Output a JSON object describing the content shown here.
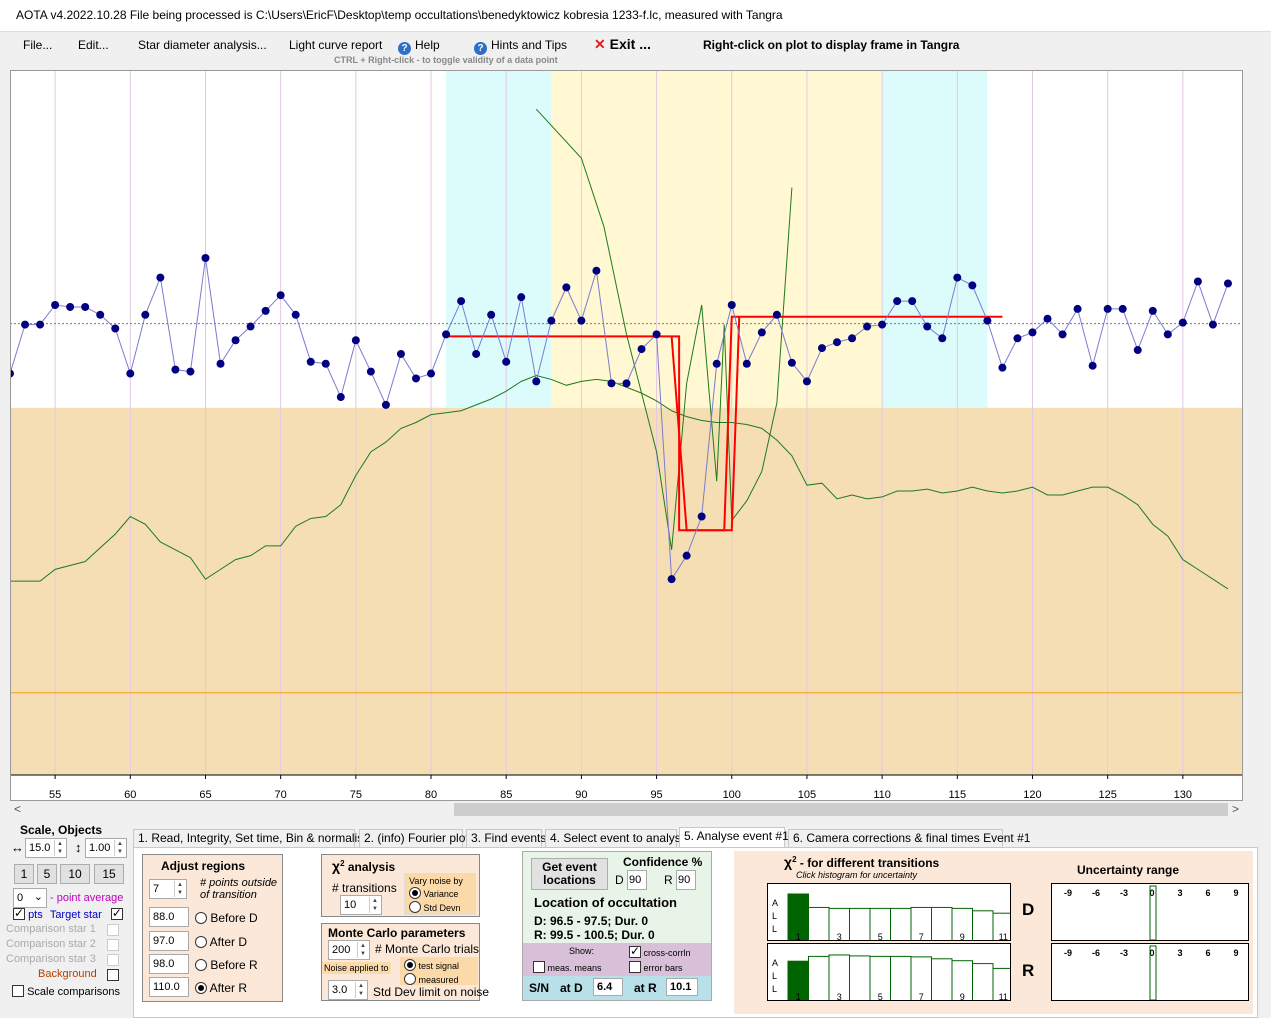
{
  "window": {
    "title": "AOTA v4.2022.10.28    File being processed is C:\\Users\\EricF\\Desktop\\temp occultations\\benedyktowicz kobresia 1233-f.lc, measured with Tangra"
  },
  "menu": {
    "file": "File...",
    "edit": "Edit...",
    "star_diameter": "Star diameter analysis...",
    "light_curve_report": "Light curve report",
    "help": "Help",
    "hints": "Hints and Tips",
    "exit": "Exit ...",
    "right_click_hint": "Right-click on plot to display frame in Tangra",
    "ctrl_hint": "CTRL + Right-click   -  to toggle validity of a data point"
  },
  "colors": {
    "target_line": "#7b7bd0",
    "target_dot": "#000080",
    "model": "#ff0000",
    "comparison": "#1e7b1e",
    "lower_band": "#f5deb3",
    "region_cyan": "#dcfcfc",
    "region_yellow": "#fff8d2",
    "baseline": "#e6a020"
  },
  "chart_data": {
    "type": "line",
    "x_ticks": [
      55,
      60,
      65,
      70,
      75,
      80,
      85,
      90,
      95,
      100,
      105,
      110,
      115,
      120,
      125,
      130
    ],
    "xlim": [
      52,
      134
    ],
    "target_series": {
      "x": [
        52,
        53,
        54,
        55,
        56,
        57,
        58,
        59,
        60,
        61,
        62,
        63,
        64,
        65,
        66,
        67,
        68,
        69,
        70,
        71,
        72,
        73,
        74,
        75,
        76,
        77,
        78,
        79,
        80,
        81,
        82,
        83,
        84,
        85,
        86,
        87,
        88,
        89,
        90,
        91,
        92,
        93,
        94,
        95,
        96,
        97,
        98,
        99,
        100,
        101,
        102,
        103,
        104,
        105,
        106,
        107,
        108,
        109,
        110,
        111,
        112,
        113,
        114,
        115,
        116,
        117,
        118,
        119,
        120,
        121,
        122,
        123,
        124,
        125,
        126,
        127,
        128,
        129,
        130,
        131,
        132,
        133
      ],
      "y": [
        0.41,
        0.46,
        0.46,
        0.48,
        0.478,
        0.478,
        0.47,
        0.456,
        0.41,
        0.47,
        0.508,
        0.414,
        0.412,
        0.528,
        0.42,
        0.444,
        0.458,
        0.474,
        0.49,
        0.47,
        0.422,
        0.42,
        0.386,
        0.444,
        0.412,
        0.378,
        0.43,
        0.405,
        0.41,
        0.45,
        0.484,
        0.43,
        0.47,
        0.422,
        0.488,
        0.402,
        0.464,
        0.498,
        0.464,
        0.515,
        0.4,
        0.4,
        0.435,
        0.45,
        0.2,
        0.224,
        0.264,
        0.42,
        0.48,
        0.42,
        0.452,
        0.47,
        0.421,
        0.402,
        0.436,
        0.442,
        0.446,
        0.458,
        0.46,
        0.484,
        0.484,
        0.458,
        0.446,
        0.508,
        0.5,
        0.464,
        0.416,
        0.446,
        0.452,
        0.466,
        0.45,
        0.476,
        0.418,
        0.476,
        0.476,
        0.434,
        0.474,
        0.45,
        0.462,
        0.504,
        0.46,
        0.502
      ]
    },
    "model": {
      "level_before": 0.448,
      "level_after": 0.468,
      "level_bottom": 0.25,
      "D": 97.0,
      "R": 100.0
    },
    "comparison_series": {
      "x": [
        52,
        54,
        55,
        57,
        59,
        60,
        61,
        62,
        63,
        64,
        65,
        66,
        67,
        68,
        69,
        70,
        71,
        72,
        73,
        74,
        75,
        76,
        77,
        78,
        79,
        80,
        81,
        82,
        83,
        84,
        85,
        86,
        87,
        88,
        89,
        90,
        91,
        92,
        93,
        94,
        95,
        96,
        97,
        98,
        99,
        100,
        101,
        102,
        103,
        104,
        105,
        106,
        107,
        108,
        109,
        110,
        111,
        112,
        113,
        114,
        115,
        116,
        117,
        118,
        119,
        120,
        121,
        122,
        123,
        124,
        125,
        126,
        127,
        128,
        129,
        130,
        131,
        133
      ],
      "y": [
        0.198,
        0.198,
        0.21,
        0.218,
        0.246,
        0.264,
        0.256,
        0.238,
        0.23,
        0.222,
        0.2,
        0.21,
        0.22,
        0.224,
        0.234,
        0.234,
        0.254,
        0.262,
        0.264,
        0.276,
        0.306,
        0.33,
        0.34,
        0.354,
        0.36,
        0.368,
        0.37,
        0.372,
        0.378,
        0.384,
        0.392,
        0.402,
        0.408,
        0.404,
        0.398,
        0.402,
        0.404,
        0.402,
        0.396,
        0.39,
        0.382,
        0.372,
        0.366,
        0.362,
        0.36,
        0.36,
        0.358,
        0.354,
        0.342,
        0.326,
        0.296,
        0.298,
        0.282,
        0.286,
        0.282,
        0.284,
        0.29,
        0.29,
        0.292,
        0.288,
        0.29,
        0.294,
        0.29,
        0.288,
        0.29,
        0.294,
        0.286,
        0.286,
        0.29,
        0.294,
        0.294,
        0.286,
        0.276,
        0.256,
        0.244,
        0.22,
        0.21,
        0.19
      ]
    },
    "green_transition_curve": {
      "x": [
        87,
        90,
        91.5,
        93,
        95,
        96,
        97,
        98,
        99,
        99.5,
        100,
        101,
        102,
        103,
        104
      ],
      "y": [
        0.68,
        0.63,
        0.56,
        0.45,
        0.33,
        0.23,
        0.4,
        0.48,
        0.3,
        0.46,
        0.26,
        0.28,
        0.31,
        0.38,
        0.6
      ]
    },
    "regions": [
      {
        "from": 81,
        "to": 88,
        "color": "cyan"
      },
      {
        "from": 88,
        "to": 110,
        "color": "yellow"
      },
      {
        "from": 110,
        "to": 117,
        "color": "cyan"
      }
    ],
    "mean_line_y": 0.461,
    "lower_band_top": 0.375,
    "baseline_y": 0.084,
    "ylim": [
      0,
      0.72
    ]
  },
  "left_panel": {
    "scale_objects": "Scale,  Objects",
    "h_scale": "15.0",
    "v_scale": "1.00",
    "scale_buttons": [
      "1",
      "5",
      "10",
      "15"
    ],
    "point_average_value": "0",
    "point_average_label": "- point average",
    "pts_label": "pts",
    "target_star": "Target star",
    "comparison_1": "Comparison star 1",
    "comparison_2": "Comparison star 2",
    "comparison_3": "Comparison star 3",
    "background": "Background",
    "scale_comparisons": "Scale comparisons"
  },
  "tabs": [
    "1.  Read, Integrity, Set time, Bin & normalise",
    "2. (info)  Fourier plot",
    "3. Find events",
    "4. Select event to analyse",
    "5. Analyse event #1",
    "6. Camera corrections & final times Event #1"
  ],
  "adjust_regions": {
    "title": "Adjust regions",
    "points_outside": "7",
    "points_outside_label_1": "# points outside",
    "points_outside_label_2": "of transition",
    "before_d": "88.0",
    "after_d": "97.0",
    "before_r": "98.0",
    "after_r": "110.0",
    "before_d_label": "Before D",
    "after_d_label": "After D",
    "before_r_label": "Before R",
    "after_r_label": "After R"
  },
  "chi2": {
    "title": "analysis",
    "transitions_label": "# transitions",
    "transitions_value": "10",
    "vary_noise": "Vary noise by",
    "variance": "Variance",
    "std_devn": "Std Devn"
  },
  "monte_carlo": {
    "title": "Monte Carlo parameters",
    "trials_value": "200",
    "trials_label": "# Monte Carlo trials",
    "noise_applied": "Noise applied to",
    "test_signal": "test signal",
    "measured": "measured",
    "std_dev_value": "3.0",
    "std_dev_label": "Std Dev limit on noise"
  },
  "event": {
    "get_locations": "Get event locations",
    "confidence": "Confidence %",
    "d_label": "D",
    "d_value": "90",
    "r_label": "R",
    "r_value": "90",
    "location_title": "Location of occultation",
    "d_result": "D: 96.5 - 97.5; Dur. 0",
    "r_result": "R: 99.5 - 100.5; Dur. 0",
    "show": "Show:",
    "cross_corrln": "cross-corrln",
    "meas_means": "meas. means",
    "error_bars": "error bars",
    "sn": "S/N",
    "at_d": "at D",
    "at_d_value": "6.4",
    "at_r": "at R",
    "at_r_value": "10.1"
  },
  "chi2_hist": {
    "title": "- for different transitions",
    "subtitle": "Click histogram for uncertainty",
    "side_letters": [
      "A",
      "L",
      "L"
    ],
    "x_labels": [
      "1",
      "3",
      "5",
      "7",
      "9",
      "11"
    ],
    "d_values": [
      1.0,
      0.72,
      0.7,
      0.7,
      0.7,
      0.7,
      0.72,
      0.72,
      0.7,
      0.65,
      0.6
    ],
    "r_values": [
      0.85,
      0.95,
      0.98,
      0.96,
      0.95,
      0.95,
      0.94,
      0.9,
      0.86,
      0.8,
      0.7
    ],
    "d_label": "D",
    "r_label": "R"
  },
  "uncertainty": {
    "title": "Uncertainty range",
    "ticks": [
      "-9",
      "-6",
      "-3",
      "0",
      "3",
      "6",
      "9"
    ]
  }
}
